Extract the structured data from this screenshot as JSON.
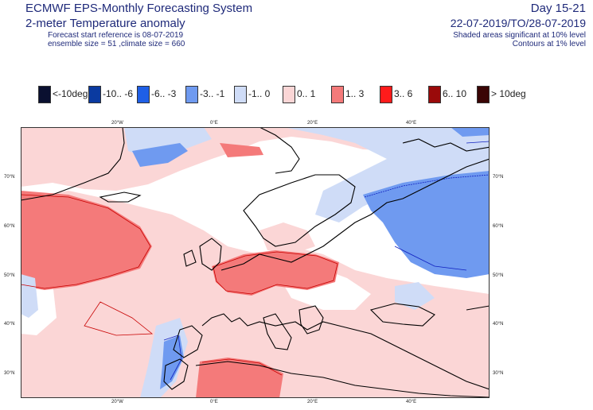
{
  "header": {
    "title": "ECMWF EPS-Monthly Forecasting System",
    "subtitle": "2-meter Temperature anomaly",
    "start_ref": "Forecast start reference is 08-07-2019",
    "ensemble": "ensemble size = 51  ,climate size = 660",
    "day_range": "Day 15-21",
    "date_range": "22-07-2019/TO/28-07-2019",
    "shaded_note": "Shaded areas significant at 10% level",
    "contour_note": "Contours at 1% level"
  },
  "legend": [
    {
      "label": "<-10deg",
      "color": "#0a1030"
    },
    {
      "label": "-10.. -6",
      "color": "#0a3aa0"
    },
    {
      "label": "-6.. -3",
      "color": "#1f5fe6"
    },
    {
      "label": "-3.. -1",
      "color": "#6f9af0"
    },
    {
      "label": "-1..  0",
      "color": "#cfdcf7"
    },
    {
      "label": "0..  1",
      "color": "#fbd6d6"
    },
    {
      "label": "1..  3",
      "color": "#f47a7a"
    },
    {
      "label": "3..  6",
      "color": "#ff1b1b"
    },
    {
      "label": "6.. 10",
      "color": "#9a0a0a"
    },
    {
      "label": "> 10deg",
      "color": "#3a0505"
    }
  ],
  "axes": {
    "top_lon": [
      "20°W",
      "0°E",
      "20°E",
      "40°E"
    ],
    "bottom_lon": [
      "20°W",
      "0°E",
      "20°E",
      "40°E"
    ],
    "left_lat": [
      "70°N",
      "60°N",
      "50°N",
      "40°N",
      "30°N"
    ],
    "right_lat": [
      "70°N",
      "60°N",
      "50°N",
      "40°N",
      "30°N"
    ]
  },
  "colors": {
    "text": "#1f2a7a",
    "coast": "#000000",
    "sig_contour_warm": "#c80000",
    "sig_contour_cold": "#1020c0"
  }
}
